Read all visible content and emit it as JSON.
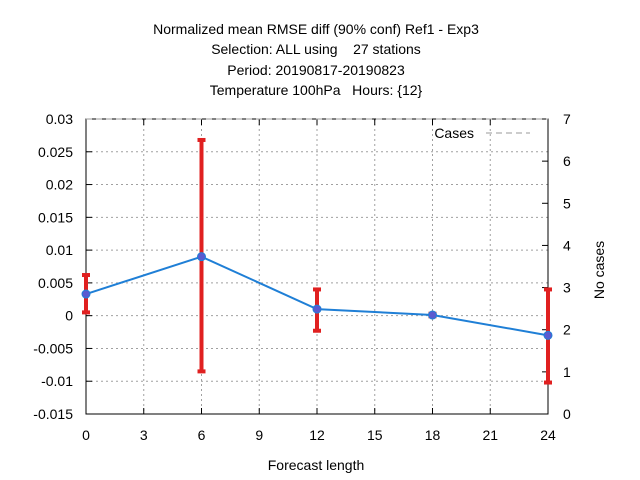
{
  "chart_data": {
    "type": "line",
    "title_lines": [
      "Normalized mean RMSE diff (90% conf) Ref1 - Exp3",
      "Selection: ALL using    27 stations",
      "Period: 20190817-20190823",
      "Temperature 100hPa   Hours: {12}"
    ],
    "xlabel": "Forecast length",
    "ylabel": "",
    "y2label": "No cases",
    "xlim": [
      0,
      24
    ],
    "ylim": [
      -0.015,
      0.03
    ],
    "y2lim": [
      0,
      7
    ],
    "x_ticks": [
      "0",
      "3",
      "6",
      "9",
      "12",
      "15",
      "18",
      "21",
      "24"
    ],
    "y_ticks": [
      "0.03",
      "0.025",
      "0.02",
      "0.015",
      "0.01",
      "0.005",
      "0",
      "-0.005",
      "-0.01",
      "-0.015"
    ],
    "y2_ticks": [
      "7",
      "6",
      "5",
      "4",
      "3",
      "2",
      "1",
      "0"
    ],
    "grid": true,
    "legend_position": "top-right",
    "series": [
      {
        "name": "",
        "color": "#1f7fd6",
        "x": [
          0,
          6,
          12,
          18,
          24
        ],
        "y": [
          0.0033,
          0.009,
          0.001,
          0.0001,
          -0.003
        ],
        "err_low": [
          0.0005,
          -0.0085,
          -0.0023,
          -0.0001,
          -0.0102
        ],
        "err_high": [
          0.0062,
          0.0268,
          0.004,
          0.0003,
          0.004
        ],
        "errorbar_color": "#e02020"
      },
      {
        "name": "Cases",
        "color": "#999999",
        "axis": "right",
        "dashed": true,
        "x": [
          0,
          6,
          12,
          18,
          24
        ],
        "y": [
          7,
          7,
          7,
          7,
          7
        ]
      }
    ]
  }
}
